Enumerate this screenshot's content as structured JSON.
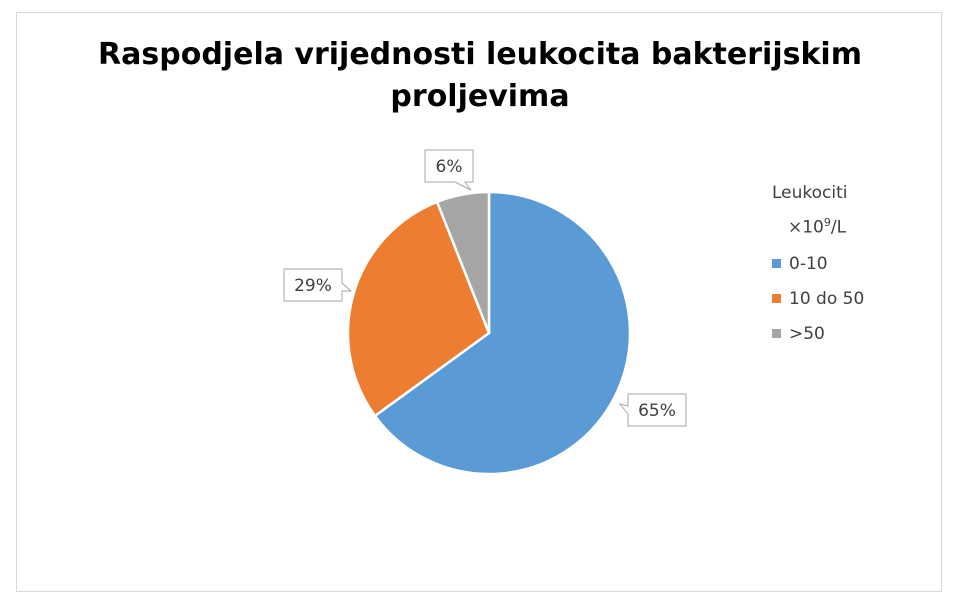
{
  "chart_data": {
    "type": "pie",
    "title": "Raspodjela vrijednosti leukocita bakterijskim proljevima",
    "title_lines": [
      "Raspodjela vrijednosti leukocita bakterijskim",
      "proljevima"
    ],
    "categories": [
      "0-10",
      "10 do 50",
      ">50"
    ],
    "values": [
      65,
      29,
      6
    ],
    "data_labels": [
      "65%",
      "29%",
      "6%"
    ],
    "colors": [
      "#5B9BD5",
      "#ED7D31",
      "#A5A5A5"
    ],
    "legend": {
      "title_line1": "Leukociti",
      "title_line2_base": "×10",
      "title_line2_sup": "9",
      "title_line2_unit": "/L",
      "placement": "right"
    }
  }
}
